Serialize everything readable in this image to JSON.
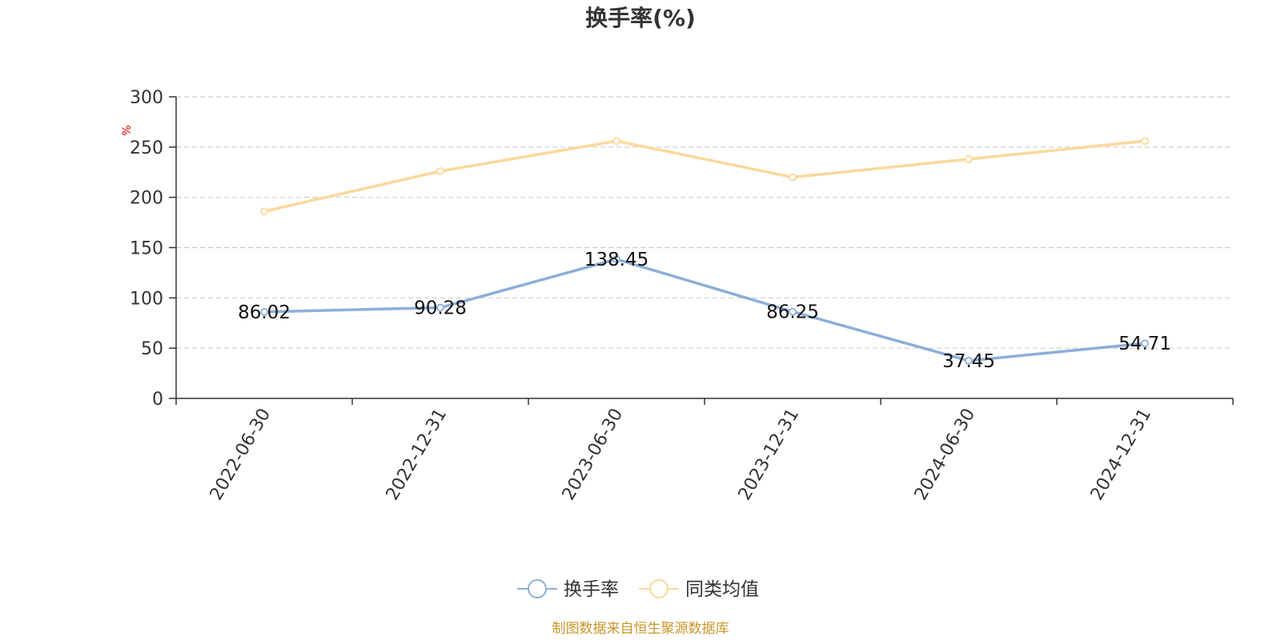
{
  "chart_data": {
    "type": "line",
    "title": "换手率(%)",
    "ylabel": "%",
    "xlabel": "",
    "categories": [
      "2022-06-30",
      "2022-12-31",
      "2023-06-30",
      "2023-12-31",
      "2024-06-30",
      "2024-12-31"
    ],
    "ylim": [
      0,
      300
    ],
    "yticks": [
      0,
      50,
      100,
      150,
      200,
      250,
      300
    ],
    "grid": true,
    "legend_position": "bottom-center",
    "series": [
      {
        "name": "换手率",
        "color": "#8eaed8",
        "values": [
          86.02,
          90.28,
          138.45,
          86.25,
          37.45,
          54.71
        ],
        "labels": [
          "86.02",
          "90.28",
          "138.45",
          "86.25",
          "37.45",
          "54.71"
        ]
      },
      {
        "name": "同类均值",
        "color": "#fbd89a",
        "values": [
          186,
          226,
          256,
          220,
          238,
          256
        ]
      }
    ]
  },
  "source": {
    "text": "制图数据来自恒生聚源数据库",
    "color": "#c8962a"
  }
}
